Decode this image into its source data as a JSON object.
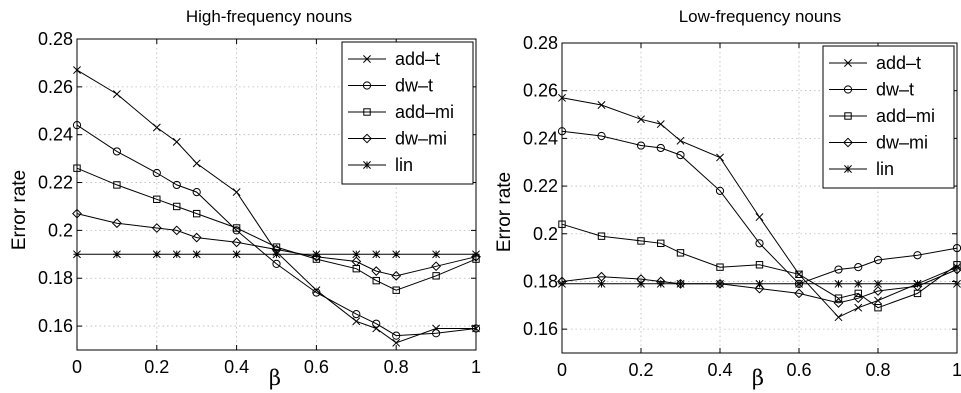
{
  "chart_data": [
    {
      "type": "line",
      "title": "High-frequency nouns",
      "xlabel": "β",
      "ylabel": "Error rate",
      "xlim": [
        0,
        1
      ],
      "ylim": [
        0.15,
        0.28
      ],
      "xticks": [
        0,
        0.2,
        0.4,
        0.6,
        0.8,
        1
      ],
      "xtick_labels": [
        "0",
        "0.2",
        "0.4",
        "0.6",
        "0.8",
        "1"
      ],
      "yticks": [
        0.16,
        0.18,
        0.2,
        0.22,
        0.24,
        0.26,
        0.28
      ],
      "ytick_labels": [
        "0.16",
        "0.18",
        "0.2",
        "0.22",
        "0.24",
        "0.26",
        "0.28"
      ],
      "grid": true,
      "legend_position": "top-right",
      "x": [
        0,
        0.1,
        0.2,
        0.25,
        0.3,
        0.4,
        0.5,
        0.6,
        0.7,
        0.75,
        0.8,
        0.9,
        1.0
      ],
      "series": [
        {
          "name": "add–t",
          "marker": "x",
          "values": [
            0.267,
            0.257,
            0.243,
            0.237,
            0.228,
            0.216,
            0.191,
            0.175,
            0.162,
            0.159,
            0.153,
            0.159,
            0.159
          ]
        },
        {
          "name": "dw–t",
          "marker": "circle",
          "values": [
            0.244,
            0.233,
            0.224,
            0.219,
            0.216,
            0.2,
            0.186,
            0.174,
            0.165,
            0.161,
            0.156,
            0.157,
            0.159
          ]
        },
        {
          "name": "add–mi",
          "marker": "square",
          "values": [
            0.226,
            0.219,
            0.213,
            0.21,
            0.207,
            0.201,
            0.193,
            0.188,
            0.184,
            0.179,
            0.175,
            0.181,
            0.188
          ]
        },
        {
          "name": "dw–mi",
          "marker": "diamond",
          "values": [
            0.207,
            0.203,
            0.201,
            0.2,
            0.197,
            0.195,
            0.192,
            0.189,
            0.187,
            0.183,
            0.181,
            0.185,
            0.189
          ]
        },
        {
          "name": "lin",
          "marker": "star",
          "values": [
            0.19,
            0.19,
            0.19,
            0.19,
            0.19,
            0.19,
            0.19,
            0.19,
            0.19,
            0.19,
            0.19,
            0.19,
            0.19
          ]
        }
      ]
    },
    {
      "type": "line",
      "title": "Low-frequency nouns",
      "xlabel": "β",
      "ylabel": "Error rate",
      "xlim": [
        0,
        1
      ],
      "ylim": [
        0.15,
        0.28
      ],
      "xticks": [
        0,
        0.2,
        0.4,
        0.6,
        0.8,
        1
      ],
      "xtick_labels": [
        "0",
        "0.2",
        "0.4",
        "0.6",
        "0.8",
        "1"
      ],
      "yticks": [
        0.16,
        0.18,
        0.2,
        0.22,
        0.24,
        0.26,
        0.28
      ],
      "ytick_labels": [
        "0.16",
        "0.18",
        "0.2",
        "0.22",
        "0.24",
        "0.26",
        "0.28"
      ],
      "grid": true,
      "legend_position": "top-right",
      "x": [
        0,
        0.1,
        0.2,
        0.25,
        0.3,
        0.4,
        0.5,
        0.6,
        0.7,
        0.75,
        0.8,
        0.9,
        1.0
      ],
      "series": [
        {
          "name": "add–t",
          "marker": "x",
          "values": [
            0.257,
            0.254,
            0.248,
            0.246,
            0.239,
            0.232,
            0.207,
            0.183,
            0.165,
            0.169,
            0.172,
            0.179,
            0.186
          ]
        },
        {
          "name": "dw–t",
          "marker": "circle",
          "values": [
            0.243,
            0.241,
            0.237,
            0.236,
            0.233,
            0.218,
            0.196,
            0.179,
            0.185,
            0.186,
            0.189,
            0.191,
            0.194
          ]
        },
        {
          "name": "add–mi",
          "marker": "square",
          "values": [
            0.204,
            0.199,
            0.197,
            0.196,
            0.192,
            0.186,
            0.187,
            0.183,
            0.173,
            0.175,
            0.169,
            0.175,
            0.187
          ]
        },
        {
          "name": "dw–mi",
          "marker": "diamond",
          "values": [
            0.18,
            0.182,
            0.181,
            0.18,
            0.179,
            0.179,
            0.177,
            0.175,
            0.171,
            0.173,
            0.176,
            0.178,
            0.185
          ]
        },
        {
          "name": "lin",
          "marker": "star",
          "values": [
            0.179,
            0.179,
            0.179,
            0.179,
            0.179,
            0.179,
            0.179,
            0.179,
            0.179,
            0.179,
            0.179,
            0.179,
            0.179
          ]
        }
      ]
    }
  ]
}
